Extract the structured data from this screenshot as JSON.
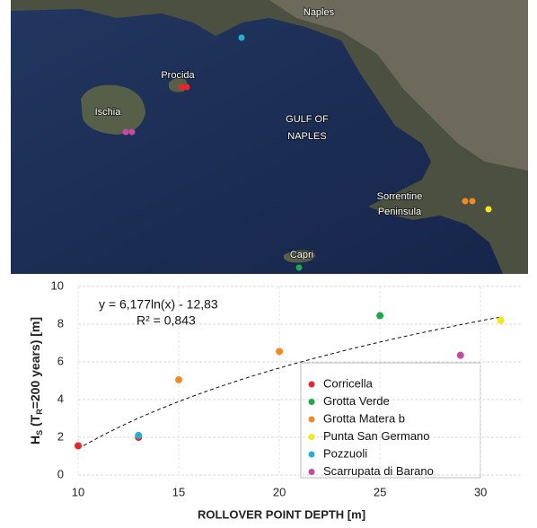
{
  "map": {
    "labels": [
      "Naples",
      "Procida",
      "Ischia",
      "GULF OF",
      "NAPLES",
      "Sorrentine",
      "Peninsula",
      "Capri"
    ]
  },
  "chart_data": {
    "type": "scatter",
    "x_label": "ROLLOVER POINT DEPTH [m]",
    "y_label_parts": [
      "H",
      "S",
      " (T",
      "R",
      "=200 years)  [m]"
    ],
    "xlim": [
      10,
      32
    ],
    "xticks": [
      10,
      15,
      20,
      25,
      30
    ],
    "ylim": [
      0,
      10
    ],
    "yticks": [
      0,
      2,
      4,
      6,
      8,
      10
    ],
    "grid": true,
    "series": [
      {
        "name": "Corricella",
        "color": "#e8262c",
        "x": [
          10,
          13
        ],
        "values": [
          1.55,
          2.0
        ]
      },
      {
        "name": "Grotta Verde",
        "color": "#1fa84a",
        "x": [
          25
        ],
        "values": [
          8.45
        ]
      },
      {
        "name": "Grotta Matera b",
        "color": "#f08a24",
        "x": [
          15,
          20
        ],
        "values": [
          5.05,
          6.55
        ]
      },
      {
        "name": "Punta San Germano",
        "color": "#f4e51c",
        "x": [
          31
        ],
        "values": [
          8.2
        ]
      },
      {
        "name": "Pozzuoli",
        "color": "#23b3d0",
        "x": [
          13
        ],
        "values": [
          2.1
        ]
      },
      {
        "name": "Scarrupata di Barano",
        "color": "#c44aa8",
        "x": [
          29
        ],
        "values": [
          6.35
        ]
      }
    ],
    "trendline": {
      "a": 6.177,
      "b": -12.83,
      "equation_label": "y = 6,177ln(x) - 12,83",
      "r2_label": "R² = 0,843"
    }
  }
}
